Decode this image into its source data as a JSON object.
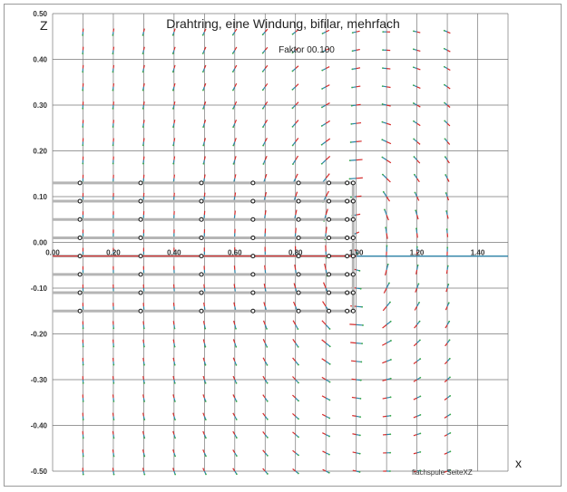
{
  "chart_data": {
    "type": "vector-field",
    "title": "Drahtring, eine Windung, bifilar, mehrfach",
    "subtitle": "Faktor 00.100",
    "xlabel": "x",
    "ylabel": "Z",
    "footer": "flachspule SeiteXZ",
    "xlim": [
      0.0,
      1.5
    ],
    "ylim": [
      -0.5,
      0.5
    ],
    "x_ticks": [
      "0.00",
      "0.20",
      "0.40",
      "0.60",
      "0.80",
      "1.00",
      "1.20",
      "1.40"
    ],
    "y_ticks": [
      "0.50",
      "0.40",
      "0.30",
      "0.20",
      "0.10",
      "0.00",
      "-0.10",
      "-0.20",
      "-0.30",
      "-0.40",
      "-0.50"
    ],
    "grid": true,
    "wire_z": [
      0.13,
      0.09,
      0.05,
      0.01,
      -0.03,
      -0.07,
      -0.11,
      -0.15
    ],
    "wire_end_x": [
      0.99,
      0.99,
      0.99,
      0.99,
      1.0,
      0.99,
      0.99,
      0.99
    ],
    "marker_x": [
      0.09,
      0.29,
      0.49,
      0.66,
      0.81,
      0.91,
      0.97,
      0.99
    ],
    "colors": {
      "grid": "#777777",
      "wire": "#b5b5b5",
      "wire_center": "#e02020",
      "vector_a": "#d42a2a",
      "vector_b": "#2a84a8",
      "vector_tip": "#3aa84a",
      "axis_line": "#2a84a8"
    }
  }
}
